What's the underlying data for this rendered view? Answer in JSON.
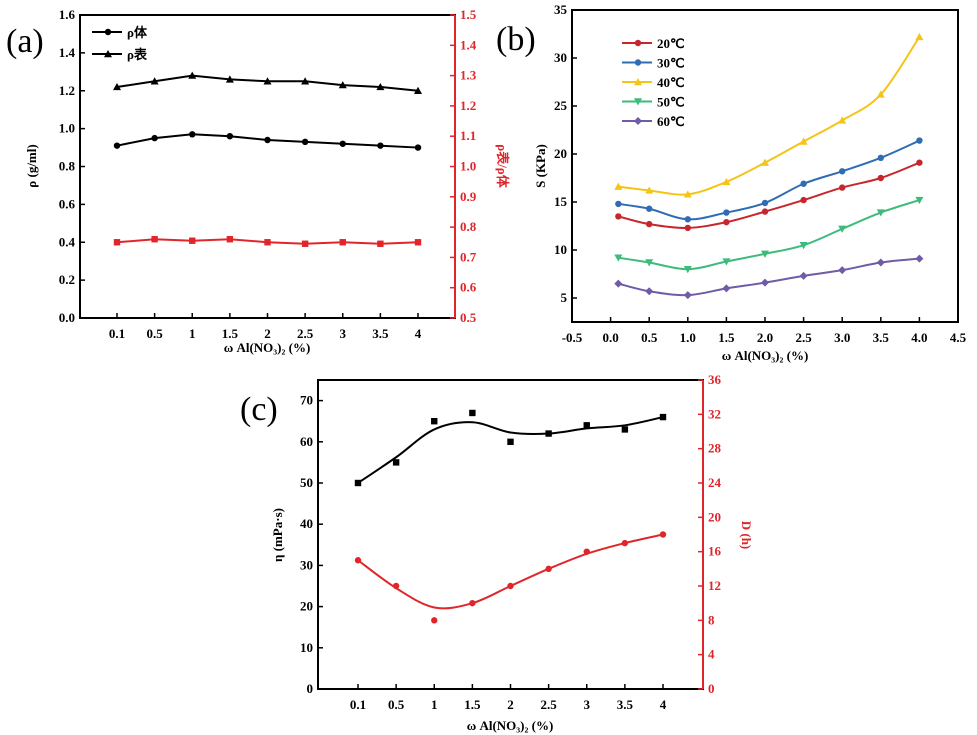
{
  "chart_data": [
    {
      "panel_label": "(a)",
      "type": "line",
      "x_type": "categorical",
      "categories": [
        "0.1",
        "0.5",
        "1",
        "1.5",
        "2",
        "2.5",
        "3",
        "3.5",
        "4"
      ],
      "xlabel": "ω Al(NO₃)₂ (%)",
      "y_left": {
        "label": "ρ (g/ml)",
        "lim": [
          0,
          1.6
        ],
        "ticks": [
          "0.0",
          "0.2",
          "0.4",
          "0.6",
          "0.8",
          "1.0",
          "1.2",
          "1.4",
          "1.6"
        ]
      },
      "y_right": {
        "label": "ρ表/ρ体",
        "lim": [
          0.5,
          1.5
        ],
        "ticks": [
          "0.5",
          "0.6",
          "0.7",
          "0.8",
          "0.9",
          "1.0",
          "1.1",
          "1.2",
          "1.3",
          "1.4",
          "1.5"
        ],
        "color": "#e0262b"
      },
      "legend_position": "top-left",
      "series": [
        {
          "name": "ρ体",
          "axis": "left",
          "color": "#000000",
          "marker": "circle",
          "smooth": false,
          "legend": true,
          "values": [
            0.91,
            0.95,
            0.97,
            0.96,
            0.94,
            0.93,
            0.92,
            0.91,
            0.9
          ]
        },
        {
          "name": "ρ表",
          "axis": "left",
          "color": "#000000",
          "marker": "triangle",
          "smooth": false,
          "legend": true,
          "values": [
            1.22,
            1.25,
            1.28,
            1.26,
            1.25,
            1.25,
            1.23,
            1.22,
            1.2
          ]
        },
        {
          "name": "ρ表/ρ体",
          "axis": "right",
          "color": "#e0262b",
          "marker": "square",
          "smooth": false,
          "legend": false,
          "values": [
            0.75,
            0.76,
            0.755,
            0.76,
            0.75,
            0.745,
            0.75,
            0.745,
            0.75
          ]
        }
      ]
    },
    {
      "panel_label": "(b)",
      "type": "line",
      "x_type": "numeric",
      "x": [
        0.1,
        0.5,
        1.0,
        1.5,
        2.0,
        2.5,
        3.0,
        3.5,
        4.0
      ],
      "xlim": [
        -0.5,
        4.5
      ],
      "xticks": [
        "-0.5",
        "0.0",
        "0.5",
        "1.0",
        "1.5",
        "2.0",
        "2.5",
        "3.0",
        "3.5",
        "4.0",
        "4.5"
      ],
      "xlabel": "ω Al(NO₃)₂ (%)",
      "y_left": {
        "label": "S (KPa)",
        "lim": [
          2.5,
          35
        ],
        "ticks": [
          "5",
          "10",
          "15",
          "20",
          "25",
          "30",
          "35"
        ]
      },
      "legend_position": "top-left",
      "series": [
        {
          "name": "20℃",
          "axis": "left",
          "color": "#c8262d",
          "marker": "circle",
          "smooth": true,
          "legend": true,
          "values": [
            13.5,
            12.7,
            12.3,
            12.9,
            14.0,
            15.2,
            16.5,
            17.5,
            19.1
          ]
        },
        {
          "name": "30℃",
          "axis": "left",
          "color": "#2f6cb3",
          "marker": "circle",
          "smooth": true,
          "legend": true,
          "values": [
            14.8,
            14.3,
            13.2,
            13.9,
            14.9,
            16.9,
            18.2,
            19.6,
            21.4
          ]
        },
        {
          "name": "40℃",
          "axis": "left",
          "color": "#f4c417",
          "marker": "triangle",
          "smooth": true,
          "legend": true,
          "values": [
            16.6,
            16.2,
            15.8,
            17.1,
            19.1,
            21.3,
            23.5,
            26.2,
            32.2
          ]
        },
        {
          "name": "50℃",
          "axis": "left",
          "color": "#3dbb7a",
          "marker": "tri-down",
          "smooth": true,
          "legend": true,
          "values": [
            9.2,
            8.7,
            8.0,
            8.8,
            9.6,
            10.5,
            12.2,
            13.9,
            15.2
          ]
        },
        {
          "name": "60℃",
          "axis": "left",
          "color": "#6f5ba6",
          "marker": "diamond",
          "smooth": true,
          "legend": true,
          "values": [
            6.5,
            5.7,
            5.3,
            6.0,
            6.6,
            7.3,
            7.9,
            8.7,
            9.1
          ]
        }
      ]
    },
    {
      "panel_label": "(c)",
      "type": "line",
      "x_type": "categorical",
      "categories": [
        "0.1",
        "0.5",
        "1",
        "1.5",
        "2",
        "2.5",
        "3",
        "3.5",
        "4"
      ],
      "xlabel": "ω Al(NO₃)₂ (%)",
      "y_left": {
        "label": "η (mPa·s)",
        "lim": [
          0,
          75
        ],
        "ticks": [
          "0",
          "10",
          "20",
          "30",
          "40",
          "50",
          "60",
          "70"
        ]
      },
      "y_right": {
        "label": "D (h)",
        "lim": [
          0,
          36
        ],
        "ticks": [
          "0",
          "4",
          "8",
          "12",
          "16",
          "20",
          "24",
          "28",
          "32",
          "36"
        ],
        "color": "#e0262b"
      },
      "series": [
        {
          "name": "η",
          "axis": "left",
          "color": "#000000",
          "marker": "square",
          "smooth": true,
          "fit": true,
          "legend": false,
          "values": [
            50,
            55,
            65,
            67,
            60,
            62,
            64,
            63,
            66
          ]
        },
        {
          "name": "D",
          "axis": "right",
          "color": "#e0262b",
          "marker": "circle",
          "smooth": true,
          "fit": true,
          "legend": false,
          "values": [
            15,
            12,
            8,
            10,
            12,
            14,
            16,
            17,
            18
          ]
        }
      ]
    }
  ]
}
